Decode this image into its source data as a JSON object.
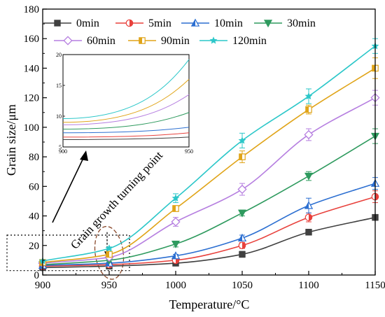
{
  "chart_data": [
    {
      "type": "line",
      "xlabel": "Temperature/°C",
      "ylabel": "Grain size/μm",
      "xlim": [
        900,
        1150
      ],
      "ylim": [
        0,
        180
      ],
      "xticks": [
        900,
        950,
        1000,
        1050,
        1100,
        1150
      ],
      "yticks": [
        0,
        20,
        40,
        60,
        80,
        100,
        120,
        140,
        160,
        180
      ],
      "x": [
        900,
        950,
        1000,
        1050,
        1100,
        1150
      ],
      "legend_position": "top",
      "series": [
        {
          "name": "0min",
          "color": "#404040",
          "marker": "square",
          "values": [
            5,
            6,
            8,
            14,
            29,
            39
          ],
          "errors": [
            0.5,
            0.5,
            1,
            2,
            2,
            2
          ]
        },
        {
          "name": "5min",
          "color": "#e8413c",
          "marker": "half-circle",
          "values": [
            6,
            7,
            10,
            20,
            39,
            53
          ],
          "errors": [
            0.5,
            0.5,
            1,
            2,
            3,
            4
          ]
        },
        {
          "name": "10min",
          "color": "#2c6fd1",
          "marker": "triangle-up",
          "values": [
            6.5,
            8,
            13,
            25,
            47,
            62
          ],
          "errors": [
            0.5,
            0.5,
            1,
            2,
            5,
            4
          ]
        },
        {
          "name": "30min",
          "color": "#2e9a5e",
          "marker": "triangle-down",
          "values": [
            7,
            10,
            21,
            42,
            67,
            94
          ],
          "errors": [
            0.5,
            1,
            2,
            2,
            3,
            5
          ]
        },
        {
          "name": "60min",
          "color": "#b67fe0",
          "marker": "diamond",
          "values": [
            8,
            12,
            36,
            58,
            95,
            120
          ],
          "errors": [
            0.5,
            1,
            3,
            4,
            4,
            5
          ]
        },
        {
          "name": "90min",
          "color": "#e0a418",
          "marker": "half-square",
          "values": [
            8.5,
            14,
            45,
            80,
            112,
            140
          ],
          "errors": [
            0.5,
            1,
            2,
            4,
            3,
            7
          ]
        },
        {
          "name": "120min",
          "color": "#2cc7c9",
          "marker": "star",
          "values": [
            9.5,
            18,
            52,
            91,
            121,
            155
          ],
          "errors": [
            0.5,
            1,
            3,
            5,
            5,
            5
          ]
        }
      ],
      "annotations": [
        "Grain growth turning point"
      ]
    },
    {
      "type": "line",
      "role": "inset",
      "xlim": [
        900,
        950
      ],
      "ylim": [
        5,
        20
      ],
      "xticks": [
        900,
        950
      ],
      "yticks": [
        5,
        10,
        15,
        20
      ],
      "x": [
        900,
        950
      ],
      "series": [
        {
          "ref": "0min",
          "color": "#404040",
          "values": [
            6.2,
            6.6
          ]
        },
        {
          "ref": "5min",
          "color": "#e8413c",
          "values": [
            6.6,
            7.3
          ]
        },
        {
          "ref": "10min",
          "color": "#2c6fd1",
          "values": [
            7.3,
            8.2
          ]
        },
        {
          "ref": "30min",
          "color": "#2e9a5e",
          "values": [
            7.9,
            10.6
          ]
        },
        {
          "ref": "60min",
          "color": "#b67fe0",
          "values": [
            8.6,
            13.5
          ]
        },
        {
          "ref": "90min",
          "color": "#e0a418",
          "values": [
            9.0,
            16.0
          ]
        },
        {
          "ref": "120min",
          "color": "#2cc7c9",
          "values": [
            9.6,
            19.2
          ]
        }
      ]
    }
  ]
}
